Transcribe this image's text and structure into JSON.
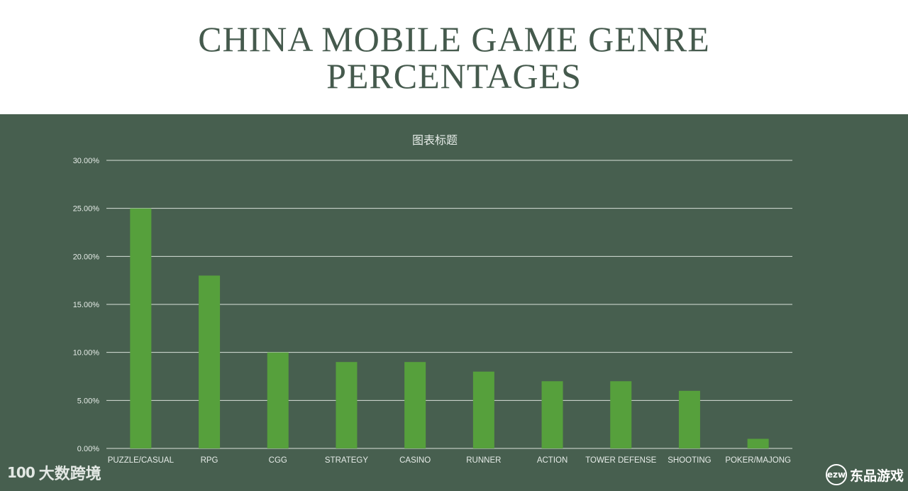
{
  "header": {
    "title": "CHINA MOBILE GAME GENRE PERCENTAGES"
  },
  "colors": {
    "panel_bg": "#475f4f",
    "bar": "#56a03c",
    "title_text": "#455a4d",
    "grid": "#d8e0da"
  },
  "chart_data": {
    "type": "bar",
    "title": "图表标题",
    "xlabel": "",
    "ylabel": "",
    "categories": [
      "PUZZLE/CASUAL",
      "RPG",
      "CGG",
      "STRATEGY",
      "CASINO",
      "RUNNER",
      "ACTION",
      "TOWER DEFENSE",
      "SHOOTING",
      "POKER/MAJONG"
    ],
    "values": [
      25,
      18,
      10,
      9,
      9,
      8,
      7,
      7,
      6,
      1
    ],
    "unit": "%",
    "ylim": [
      0,
      30
    ],
    "yticks": [
      0,
      5,
      10,
      15,
      20,
      25,
      30
    ],
    "ytick_labels": [
      "0.00%",
      "5.00%",
      "10.00%",
      "15.00%",
      "20.00%",
      "25.00%",
      "30.00%"
    ],
    "grid": true,
    "legend": "none"
  },
  "watermarks": {
    "left_logo": "100",
    "left_text": "大数跨境",
    "right_logo": "ezw",
    "right_text": "东品游戏"
  }
}
